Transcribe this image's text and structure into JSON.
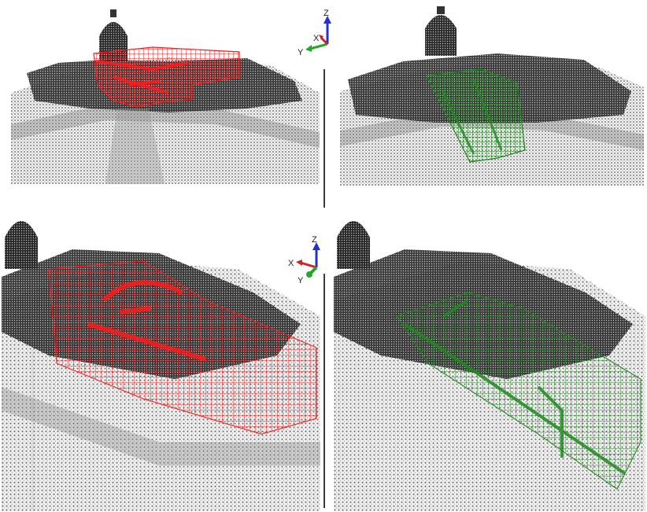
{
  "colors": {
    "background": "#ffffff",
    "point_cloud": "#1a1a1a",
    "terrain_light": "#e6e6e6",
    "red_overlay": "#ff1a1a",
    "green_overlay": "#1f8a1f",
    "axis_x": "#d42020",
    "axis_y": "#22aa22",
    "axis_z": "#2233cc"
  },
  "axes_triad_top": {
    "x": "X",
    "y": "Y",
    "z": "Z"
  },
  "axes_triad_bottom": {
    "x": "X",
    "y": "Y",
    "z": "Z"
  },
  "panels": [
    {
      "overlay": "red"
    },
    {
      "overlay": "green"
    },
    {
      "overlay": "red"
    },
    {
      "overlay": "green"
    }
  ]
}
